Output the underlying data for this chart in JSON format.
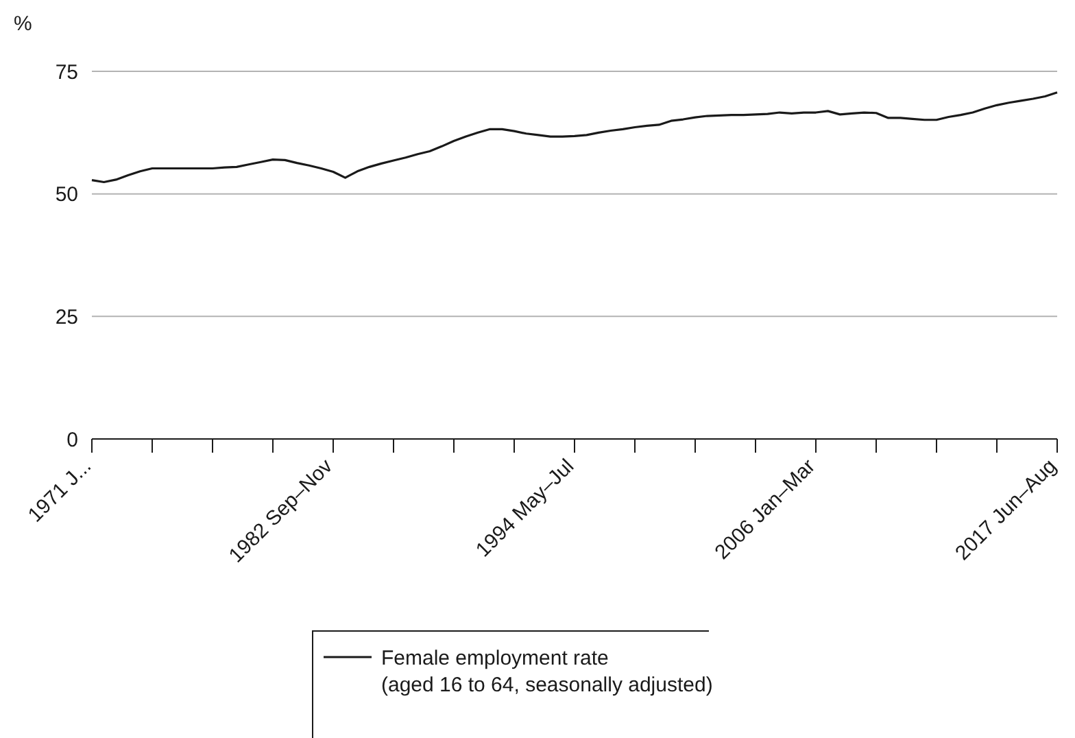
{
  "chart_data": {
    "type": "line",
    "ylabel": "%",
    "ylim": [
      0,
      75
    ],
    "yticks": [
      0,
      25,
      50,
      75
    ],
    "categories": [
      "1971 J...",
      null,
      null,
      null,
      null,
      null,
      null,
      null,
      null,
      null,
      null,
      null,
      null,
      null,
      null,
      null,
      null,
      null,
      null,
      null,
      "1982 Sep–Nov",
      null,
      null,
      null,
      null,
      null,
      null,
      null,
      null,
      null,
      null,
      null,
      null,
      null,
      null,
      null,
      null,
      null,
      null,
      null,
      "1994 May–Jul",
      null,
      null,
      null,
      null,
      null,
      null,
      null,
      null,
      null,
      null,
      null,
      null,
      null,
      null,
      null,
      null,
      null,
      null,
      null,
      "2006 Jan–Mar",
      null,
      null,
      null,
      null,
      null,
      null,
      null,
      null,
      null,
      null,
      null,
      null,
      null,
      null,
      null,
      null,
      null,
      null,
      null,
      "2017 Jun–Aug"
    ],
    "grid": "y",
    "legend": "bottom",
    "marker": "none",
    "line_style": "solid",
    "series": [
      {
        "name": "Female employment rate (aged 16 to 64, seasonally adjusted)",
        "color": "#1a1a1a",
        "values": [
          52.8,
          52.4,
          52.9,
          53.8,
          54.6,
          55.2,
          55.2,
          55.2,
          55.2,
          55.2,
          55.2,
          55.4,
          55.5,
          56.0,
          56.5,
          57.0,
          56.9,
          56.3,
          55.8,
          55.2,
          54.5,
          53.3,
          54.6,
          55.5,
          56.2,
          56.8,
          57.4,
          58.1,
          58.7,
          59.7,
          60.8,
          61.7,
          62.5,
          63.2,
          63.2,
          62.8,
          62.3,
          62.0,
          61.7,
          61.7,
          61.8,
          62.0,
          62.5,
          62.9,
          63.2,
          63.6,
          63.9,
          64.1,
          64.9,
          65.2,
          65.6,
          65.9,
          66.0,
          66.1,
          66.1,
          66.2,
          66.3,
          66.6,
          66.4,
          66.6,
          66.6,
          66.9,
          66.2,
          66.4,
          66.6,
          66.5,
          65.5,
          65.5,
          65.3,
          65.1,
          65.1,
          65.7,
          66.1,
          66.6,
          67.4,
          68.1,
          68.6,
          69.0,
          69.4,
          69.9,
          70.7
        ]
      }
    ]
  }
}
